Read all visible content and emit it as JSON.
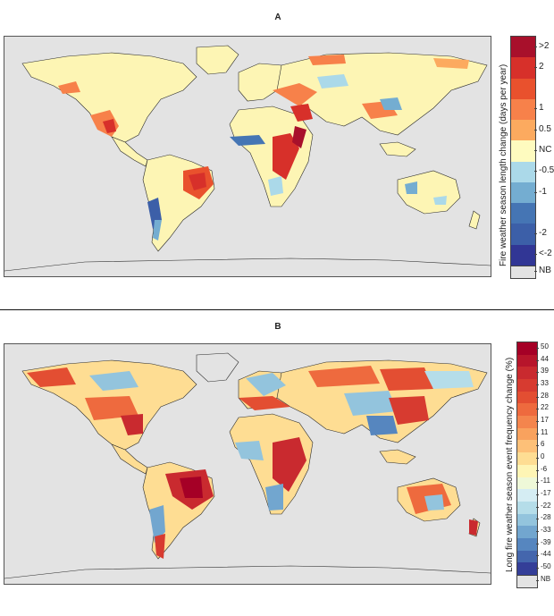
{
  "panels": [
    {
      "label": "A",
      "colorbar": {
        "title": "Fire weather season length change (days per year)",
        "categories": [
          {
            "label": ">2",
            "color": "#a8102b"
          },
          {
            "label": "2",
            "color": "#d7302a"
          },
          {
            "label": "",
            "color": "#e9512d"
          },
          {
            "label": "1",
            "color": "#f7814a"
          },
          {
            "label": "0.5",
            "color": "#fcaa5f"
          },
          {
            "label": "NC",
            "color": "#fefbbf"
          },
          {
            "label": "-0.5",
            "color": "#abd9e9"
          },
          {
            "label": "-1",
            "color": "#74add1"
          },
          {
            "label": "",
            "color": "#4575b4"
          },
          {
            "label": "-2",
            "color": "#3c5fa8"
          },
          {
            "label": "<-2",
            "color": "#313695"
          },
          {
            "label": "NB",
            "color": "#e3e3e3"
          }
        ]
      }
    },
    {
      "label": "B",
      "colorbar": {
        "title": "Long fire weather season event frequency change (%)",
        "categories": [
          {
            "label": "50",
            "color": "#a50026"
          },
          {
            "label": "44",
            "color": "#b7152b"
          },
          {
            "label": "39",
            "color": "#c92a2f"
          },
          {
            "label": "33",
            "color": "#d73b30"
          },
          {
            "label": "28",
            "color": "#e34e32"
          },
          {
            "label": "22",
            "color": "#ee6a3e"
          },
          {
            "label": "17",
            "color": "#f4854d"
          },
          {
            "label": "11",
            "color": "#f9a25e"
          },
          {
            "label": "6",
            "color": "#fdc078"
          },
          {
            "label": "0",
            "color": "#fedd93"
          },
          {
            "label": "-6",
            "color": "#fef5b5"
          },
          {
            "label": "-11",
            "color": "#eef8d8"
          },
          {
            "label": "-17",
            "color": "#d5edf3"
          },
          {
            "label": "-22",
            "color": "#b5dde9"
          },
          {
            "label": "-28",
            "color": "#93c4dd"
          },
          {
            "label": "-33",
            "color": "#72a6cf"
          },
          {
            "label": "-39",
            "color": "#5686bf"
          },
          {
            "label": "-44",
            "color": "#4466ad"
          },
          {
            "label": "-50",
            "color": "#343e98"
          },
          {
            "label": "NB",
            "color": "#e3e3e3"
          }
        ]
      }
    }
  ]
}
